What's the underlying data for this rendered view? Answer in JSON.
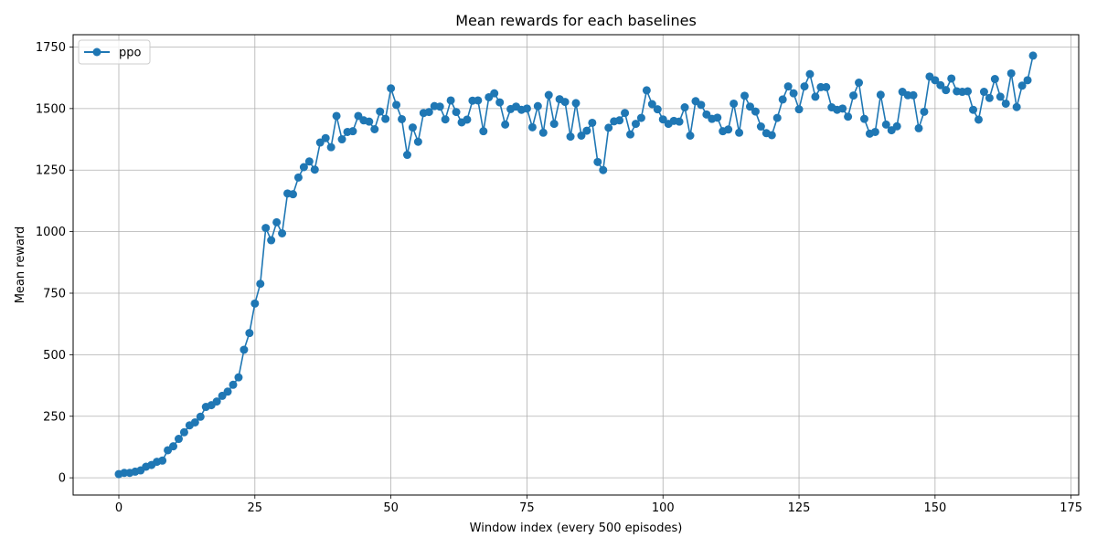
{
  "chart_data": {
    "type": "line",
    "title": "Mean rewards for each baselines",
    "xlabel": "Window index (every 500 episodes)",
    "ylabel": "Mean reward",
    "xlim": [
      -8.4,
      176.4
    ],
    "ylim": [
      -70,
      1800
    ],
    "xticks": [
      0,
      25,
      50,
      75,
      100,
      125,
      150,
      175
    ],
    "yticks": [
      0,
      250,
      500,
      750,
      1000,
      1250,
      1500,
      1750
    ],
    "grid": true,
    "legend": "top-left",
    "colors": {
      "series": "#1f77b4",
      "grid": "#b0b0b0",
      "axis": "#000000"
    },
    "series": [
      {
        "name": "ppo",
        "x": [
          0,
          1,
          2,
          3,
          4,
          5,
          6,
          7,
          8,
          9,
          10,
          11,
          12,
          13,
          14,
          15,
          16,
          17,
          18,
          19,
          20,
          21,
          22,
          23,
          24,
          25,
          26,
          27,
          28,
          29,
          30,
          31,
          32,
          33,
          34,
          35,
          36,
          37,
          38,
          39,
          40,
          41,
          42,
          43,
          44,
          45,
          46,
          47,
          48,
          49,
          50,
          51,
          52,
          53,
          54,
          55,
          56,
          57,
          58,
          59,
          60,
          61,
          62,
          63,
          64,
          65,
          66,
          67,
          68,
          69,
          70,
          71,
          72,
          73,
          74,
          75,
          76,
          77,
          78,
          79,
          80,
          81,
          82,
          83,
          84,
          85,
          86,
          87,
          88,
          89,
          90,
          91,
          92,
          93,
          94,
          95,
          96,
          97,
          98,
          99,
          100,
          101,
          102,
          103,
          104,
          105,
          106,
          107,
          108,
          109,
          110,
          111,
          112,
          113,
          114,
          115,
          116,
          117,
          118,
          119,
          120,
          121,
          122,
          123,
          124,
          125,
          126,
          127,
          128,
          129,
          130,
          131,
          132,
          133,
          134,
          135,
          136,
          137,
          138,
          139,
          140,
          141,
          142,
          143,
          144,
          145,
          146,
          147,
          148,
          149,
          150,
          151,
          152,
          153,
          154,
          155,
          156,
          157,
          158,
          159,
          160,
          161,
          162,
          163,
          164,
          165,
          166,
          167,
          168
        ],
        "values": [
          15,
          20,
          20,
          25,
          30,
          45,
          52,
          65,
          70,
          112,
          128,
          158,
          185,
          213,
          225,
          248,
          288,
          295,
          310,
          333,
          350,
          378,
          408,
          520,
          588,
          708,
          788,
          1015,
          965,
          1038,
          993,
          1155,
          1152,
          1220,
          1262,
          1285,
          1252,
          1362,
          1380,
          1343,
          1470,
          1375,
          1405,
          1408,
          1470,
          1452,
          1447,
          1416,
          1488,
          1458,
          1582,
          1515,
          1457,
          1312,
          1423,
          1365,
          1482,
          1486,
          1510,
          1508,
          1456,
          1533,
          1486,
          1444,
          1455,
          1532,
          1533,
          1408,
          1546,
          1562,
          1525,
          1435,
          1498,
          1508,
          1495,
          1500,
          1424,
          1510,
          1402,
          1555,
          1438,
          1538,
          1527,
          1386,
          1522,
          1390,
          1410,
          1442,
          1283,
          1250,
          1422,
          1448,
          1452,
          1482,
          1395,
          1438,
          1462,
          1574,
          1518,
          1497,
          1456,
          1438,
          1450,
          1447,
          1505,
          1390,
          1530,
          1515,
          1476,
          1458,
          1463,
          1408,
          1415,
          1520,
          1402,
          1552,
          1508,
          1488,
          1427,
          1400,
          1392,
          1462,
          1537,
          1590,
          1562,
          1497,
          1590,
          1640,
          1548,
          1587,
          1587,
          1505,
          1495,
          1500,
          1467,
          1553,
          1605,
          1458,
          1398,
          1405,
          1556,
          1435,
          1412,
          1428,
          1568,
          1554,
          1554,
          1420,
          1487,
          1630,
          1615,
          1595,
          1575,
          1622,
          1570,
          1568,
          1570,
          1495,
          1455,
          1568,
          1543,
          1620,
          1548,
          1520,
          1643,
          1506,
          1593,
          1615,
          1715
        ]
      }
    ]
  }
}
